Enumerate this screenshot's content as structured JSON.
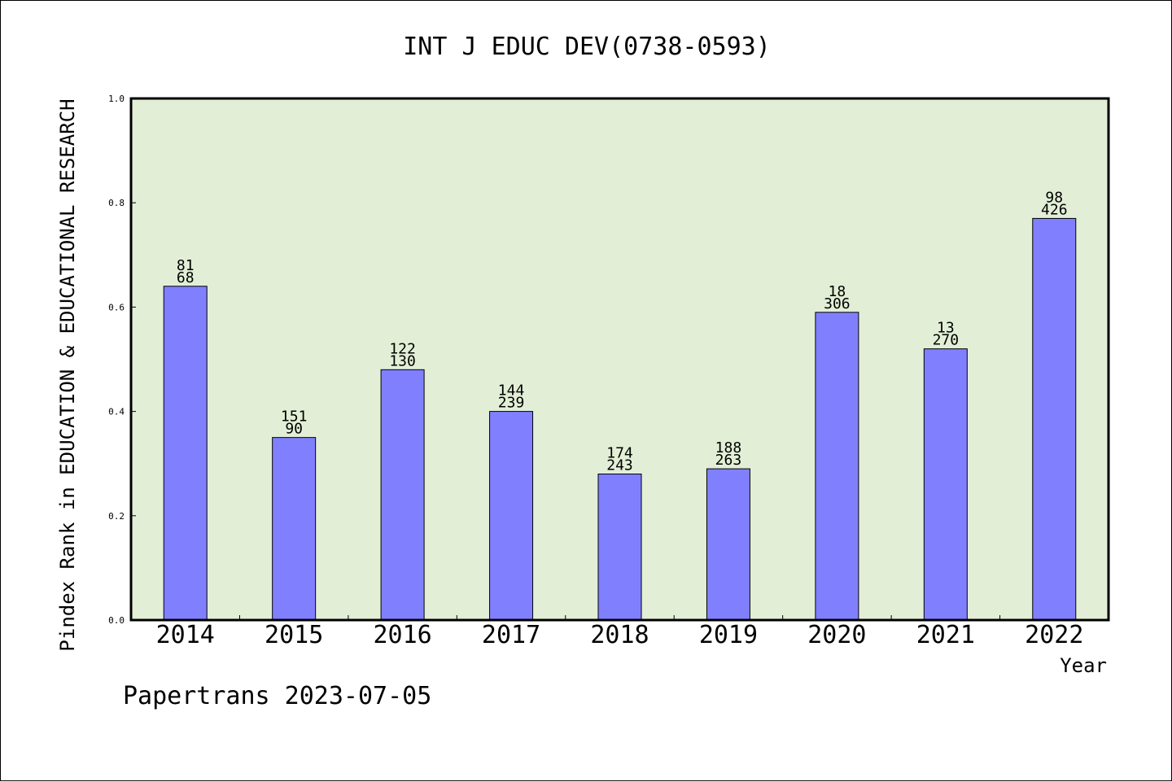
{
  "chart_data": {
    "type": "bar",
    "title": "INT J EDUC DEV(0738-0593)",
    "xlabel": "Year",
    "ylabel": "Pindex Rank in EDUCATION & EDUCATIONAL RESEARCH",
    "ylim": [
      0.0,
      1.0
    ],
    "yticks": [
      "0.0",
      "0.2",
      "0.4",
      "0.6",
      "0.8",
      "1.0"
    ],
    "categories": [
      "2014",
      "2015",
      "2016",
      "2017",
      "2018",
      "2019",
      "2020",
      "2021",
      "2022"
    ],
    "values": [
      0.64,
      0.35,
      0.48,
      0.4,
      0.28,
      0.29,
      0.59,
      0.52,
      0.77
    ],
    "labels_top": [
      "81",
      "151",
      "122",
      "144",
      "174",
      "188",
      "18",
      "13",
      "98"
    ],
    "labels_bottom": [
      "68",
      "90",
      "130",
      "239",
      "243",
      "263",
      "306",
      "270",
      "426"
    ],
    "grid": false,
    "colors": {
      "bar": "#8080ff",
      "plot_background": "#e2efd6",
      "axes": "#000000"
    }
  },
  "footer": "Papertrans 2023-07-05"
}
